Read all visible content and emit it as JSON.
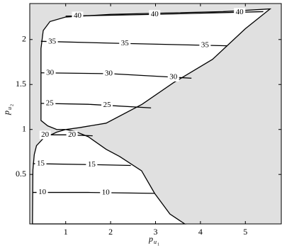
{
  "chart_data": {
    "type": "contour",
    "x_label": "p",
    "x_label_sub": "u",
    "x_label_subsub": "1",
    "y_label": "p",
    "y_label_sub": "u",
    "y_label_subsub": "2",
    "xlim": [
      0.2,
      5.8
    ],
    "ylim": [
      -0.05,
      2.4
    ],
    "xticks": [
      1,
      2,
      3,
      4,
      5
    ],
    "yticks": [
      0.5,
      1,
      1.5,
      2
    ],
    "background_color": "#e0e0e0",
    "region_color": "#ffffff",
    "line_color": "#000000",
    "region": {
      "x": [
        1.0,
        0.8,
        0.5,
        0.35,
        0.3,
        0.27,
        0.26,
        3.65,
        3.32,
        2.98,
        2.69,
        2.2,
        1.9,
        1.5,
        1.2,
        1.0,
        1.3,
        1.9,
        2.7,
        3.4,
        4.27,
        5.0,
        5.55,
        4.5,
        2.0,
        1.0,
        0.65,
        0.5,
        0.45,
        0.45,
        0.6,
        0.8
      ],
      "y": [
        1.0,
        0.97,
        0.9,
        0.82,
        0.72,
        0.55,
        -0.05,
        -0.05,
        0.06,
        0.29,
        0.54,
        0.7,
        0.78,
        0.92,
        0.98,
        1.0,
        1.02,
        1.07,
        1.28,
        1.52,
        1.78,
        2.12,
        2.34,
        2.31,
        2.28,
        2.25,
        2.2,
        2.1,
        1.9,
        1.1,
        1.04,
        1.0
      ]
    },
    "contours": [
      {
        "level": 10,
        "x": [
          0.26,
          1.5,
          2.98
        ],
        "y": [
          0.3,
          0.3,
          0.29
        ]
      },
      {
        "level": 15,
        "x": [
          0.27,
          1.5,
          2.45
        ],
        "y": [
          0.62,
          0.61,
          0.6
        ]
      },
      {
        "level": 20,
        "x": [
          0.45,
          1.0,
          1.6
        ],
        "y": [
          0.94,
          0.94,
          0.93
        ]
      },
      {
        "level": 25,
        "x": [
          0.45,
          1.5,
          2.9
        ],
        "y": [
          1.29,
          1.28,
          1.24
        ]
      },
      {
        "level": 30,
        "x": [
          0.45,
          2.0,
          3.8
        ],
        "y": [
          1.63,
          1.62,
          1.57
        ]
      },
      {
        "level": 35,
        "x": [
          0.45,
          2.0,
          4.6
        ],
        "y": [
          1.98,
          1.96,
          1.93
        ]
      },
      {
        "level": 40,
        "x": [
          1.0,
          3.0,
          5.4
        ],
        "y": [
          2.26,
          2.28,
          2.31
        ]
      }
    ]
  }
}
